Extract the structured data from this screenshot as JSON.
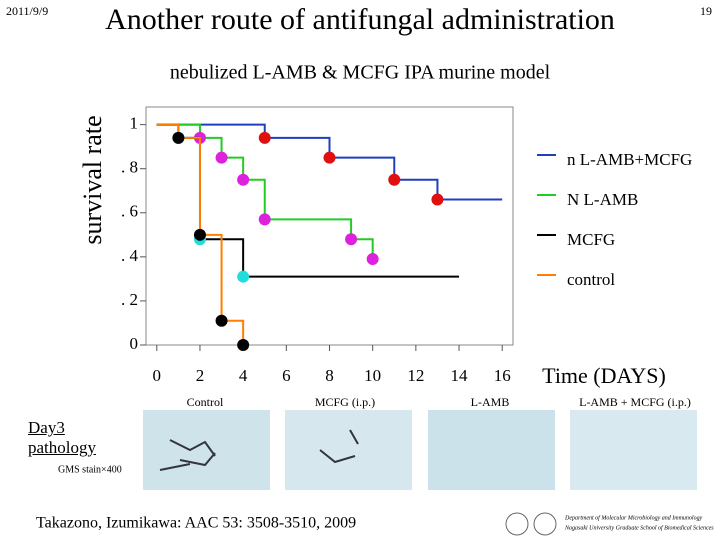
{
  "slide": {
    "date": "2011/9/9",
    "page": "19",
    "title": "Another route of antifungal administration",
    "panel_captions": [
      "Control",
      "MCFG (i.p.)",
      "L-AMB",
      "L-AMB + MCFG (i.p.)"
    ],
    "pathology_label": "Day3 pathology",
    "stain": "GMS stain×400",
    "citation": "Takazono, Izumikawa: AAC 53: 3508-3510, 2009",
    "footer": [
      "Department of Molecular Microbiology and Immunology",
      "Nagasaki University Graduate School of Biomedical Sciences"
    ]
  },
  "chart_data": {
    "type": "line",
    "step": "post",
    "title": "nebulized L-AMB & MCFG IPA murine model",
    "x_label": "Time (DAYS)",
    "y_label": "survival rate",
    "xlim": [
      -0.5,
      16.5
    ],
    "xticks": [
      0,
      2,
      4,
      6,
      8,
      10,
      12,
      14,
      16
    ],
    "ylim": [
      0,
      1.08
    ],
    "yticks": [
      0,
      {
        "value": 0.2,
        "label": ". 2"
      },
      {
        "value": 0.4,
        "label": ". 4"
      },
      {
        "value": 0.6,
        "label": ". 6"
      },
      {
        "value": 0.8,
        "label": ". 8"
      },
      1
    ],
    "legend": "right",
    "series": [
      {
        "name": "n L-AMB+MCFG",
        "color": "#1f3fbf",
        "marker_color": "#e01010",
        "x": [
          0,
          5,
          8,
          11,
          13,
          16
        ],
        "values": [
          1,
          0.94,
          0.85,
          0.75,
          0.66,
          0.66
        ]
      },
      {
        "name": "N L-AMB",
        "color": "#22cc22",
        "marker_color": "#dd22dd",
        "x": [
          0,
          2,
          3,
          4,
          5,
          9,
          10
        ],
        "values": [
          1,
          0.94,
          0.85,
          0.75,
          0.57,
          0.48,
          0.39
        ]
      },
      {
        "name": "MCFG",
        "color": "#000000",
        "marker_color": "#22dddd",
        "x": [
          0,
          1,
          2,
          4,
          14
        ],
        "values": [
          1,
          0.94,
          0.48,
          0.31,
          0.31
        ]
      },
      {
        "name": "control",
        "color": "#ff8000",
        "marker_color": "#000000",
        "x": [
          0,
          1,
          2,
          3,
          4
        ],
        "values": [
          1,
          0.94,
          0.5,
          0.11,
          0
        ]
      }
    ]
  }
}
